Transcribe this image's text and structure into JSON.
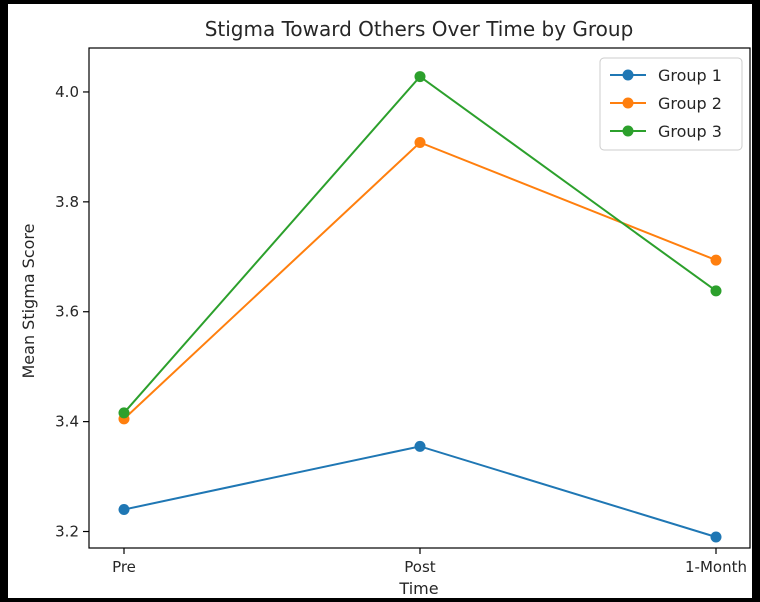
{
  "chart_data": {
    "type": "line",
    "title": "Stigma Toward Others Over Time by Group",
    "xlabel": "Time",
    "ylabel": "Mean Stigma Score",
    "categories": [
      "Pre",
      "Post",
      "1-Month"
    ],
    "ylim": [
      3.17,
      4.08
    ],
    "yticks": [
      3.2,
      3.4,
      3.6,
      3.8,
      4.0
    ],
    "ytick_labels": [
      "3.2",
      "3.4",
      "3.6",
      "3.8",
      "4.0"
    ],
    "grid": false,
    "legend_position": "top-right",
    "series": [
      {
        "name": "Group 1",
        "color": "#1f77b4",
        "values": [
          3.24,
          3.355,
          3.19
        ]
      },
      {
        "name": "Group 2",
        "color": "#ff7f0e",
        "values": [
          3.405,
          3.908,
          3.694
        ]
      },
      {
        "name": "Group 3",
        "color": "#2ca02c",
        "values": [
          3.416,
          4.028,
          3.638
        ]
      }
    ]
  }
}
